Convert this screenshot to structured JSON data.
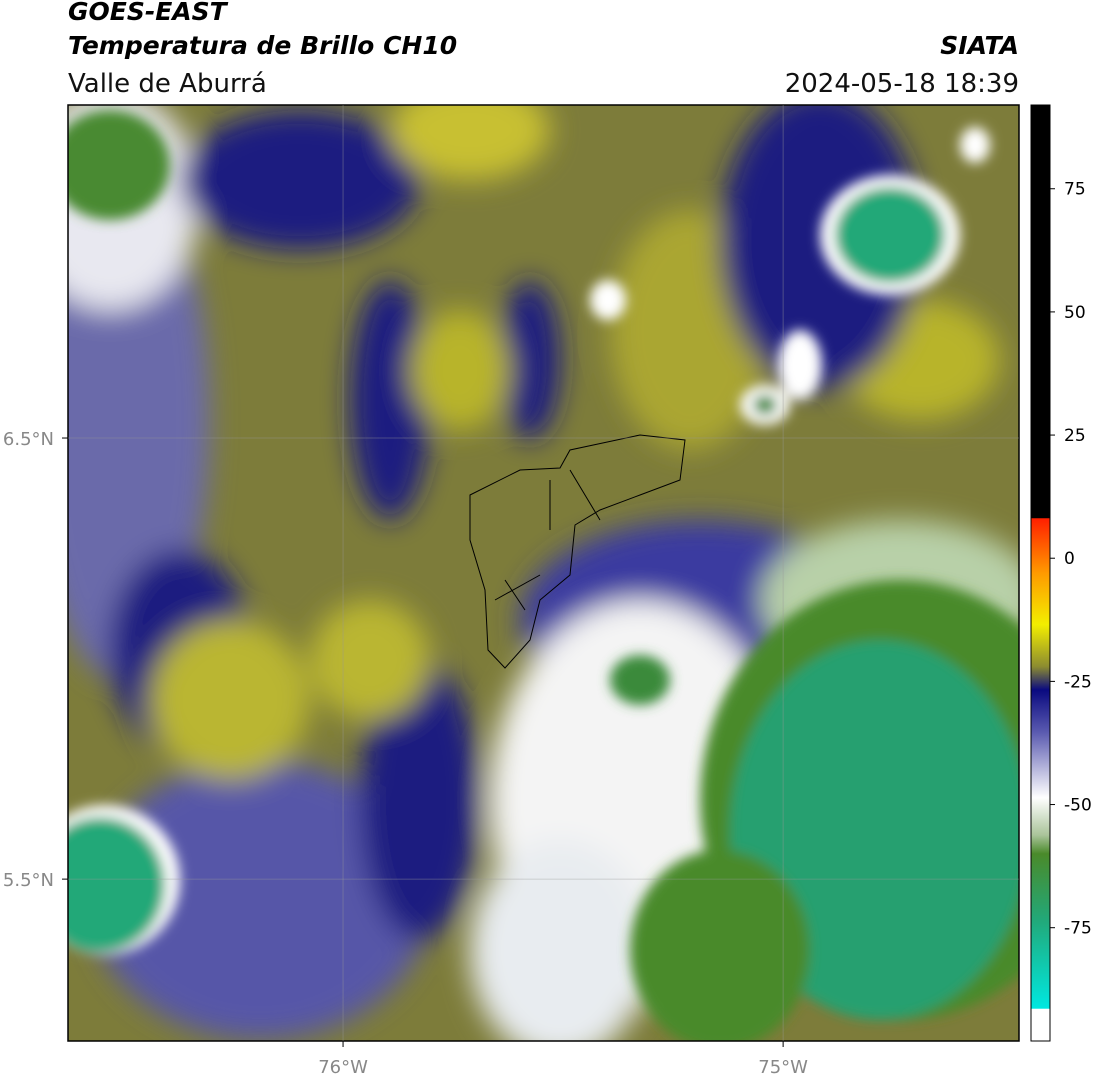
{
  "header": {
    "title": "GOES-EAST",
    "subtitle": "Temperatura de Brillo CH10",
    "region": "Valle de Aburrá",
    "source": "SIATA",
    "datetime": "2024-05-18 18:39"
  },
  "map": {
    "xlim": [
      -76.625,
      -74.464
    ],
    "ylim": [
      5.133,
      7.255
    ],
    "xticks": [
      {
        "value": -76,
        "label": "76°W"
      },
      {
        "value": -75,
        "label": "75°W"
      }
    ],
    "yticks": [
      {
        "value": 6.5,
        "label": "6.5°N"
      },
      {
        "value": 5.5,
        "label": "5.5°N"
      }
    ]
  },
  "colorbar": {
    "lim": [
      -98,
      92
    ],
    "ticks": [
      75,
      50,
      25,
      0,
      -25,
      -50,
      -75
    ]
  }
}
